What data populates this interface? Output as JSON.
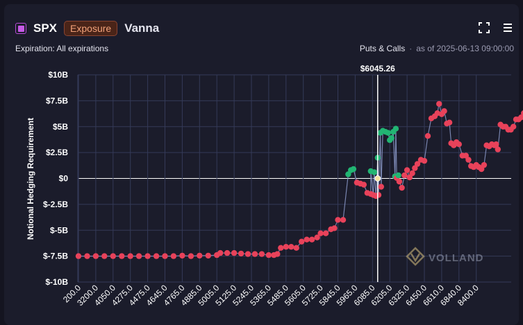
{
  "header": {
    "symbol": "SPX",
    "badge": "Exposure",
    "greek": "Vanna",
    "expiration": "Expiration: All expirations",
    "filter": "Puts & Calls",
    "dot": "·",
    "as_of": "as of 2025-06-13 09:00:00"
  },
  "icons": {
    "expand": "expand-icon",
    "menu": "hamburger-menu-icon",
    "logo": "volland-logo-icon"
  },
  "watermark": "VOLLAND",
  "colors": {
    "negative": "#e8425a",
    "positive": "#22b573",
    "line": "#8a98c8",
    "spot": "#ffffff",
    "spot_marker": "#f3e3a0"
  },
  "chart_data": {
    "type": "scatter",
    "ylabel": "Notional Hedging Requirement",
    "ylim": [
      -10,
      10
    ],
    "y_ticks": [
      "$-10B",
      "$-7.5B",
      "$-5B",
      "$-2.5B",
      "$0",
      "$2.5B",
      "$5B",
      "$7.5B",
      "$10B"
    ],
    "y_tick_values": [
      -10,
      -7.5,
      -5,
      -2.5,
      0,
      2.5,
      5,
      7.5,
      10
    ],
    "x_ticks": [
      "200.0",
      "3200.0",
      "4050.0",
      "4275.0",
      "4475.0",
      "4645.0",
      "4765.0",
      "4885.0",
      "5005.0",
      "5125.0",
      "5245.0",
      "5365.0",
      "5485.0",
      "5605.0",
      "5725.0",
      "5845.0",
      "5965.0",
      "6085.0",
      "6205.0",
      "6325.0",
      "6450.0",
      "6610.0",
      "6840.0",
      "8400.0"
    ],
    "spot": {
      "label": "$6045.26",
      "x_index": 17.3,
      "y": 0
    },
    "grid": true,
    "series": [
      {
        "color": "negative",
        "points": [
          [
            0,
            -7.5
          ],
          [
            0.5,
            -7.5
          ],
          [
            1,
            -7.5
          ],
          [
            1.5,
            -7.5
          ],
          [
            2,
            -7.5
          ],
          [
            2.5,
            -7.5
          ],
          [
            3,
            -7.5
          ],
          [
            3.5,
            -7.5
          ],
          [
            4,
            -7.5
          ],
          [
            4.5,
            -7.5
          ],
          [
            5,
            -7.5
          ],
          [
            5.5,
            -7.5
          ],
          [
            6,
            -7.45
          ],
          [
            6.5,
            -7.5
          ],
          [
            7,
            -7.45
          ],
          [
            7.5,
            -7.45
          ],
          [
            8,
            -7.4
          ],
          [
            8.2,
            -7.2
          ],
          [
            8.6,
            -7.2
          ],
          [
            9,
            -7.2
          ],
          [
            9.4,
            -7.25
          ],
          [
            9.8,
            -7.3
          ],
          [
            10.2,
            -7.3
          ],
          [
            10.6,
            -7.3
          ],
          [
            11,
            -7.4
          ],
          [
            11.3,
            -7.4
          ],
          [
            11.5,
            -7.3
          ],
          [
            11.7,
            -6.7
          ],
          [
            12,
            -6.6
          ],
          [
            12.3,
            -6.6
          ],
          [
            12.6,
            -6.7
          ],
          [
            12.9,
            -6.1
          ],
          [
            13.2,
            -5.9
          ],
          [
            13.5,
            -5.9
          ],
          [
            13.8,
            -5.7
          ],
          [
            14,
            -5.3
          ],
          [
            14.3,
            -5.3
          ],
          [
            14.6,
            -4.9
          ],
          [
            14.8,
            -4.8
          ],
          [
            15,
            -4.0
          ],
          [
            15.3,
            -4.0
          ],
          [
            16.1,
            -0.4
          ],
          [
            16.3,
            -0.5
          ],
          [
            16.5,
            -0.6
          ],
          [
            16.7,
            -1.4
          ],
          [
            16.9,
            -1.5
          ],
          [
            17.05,
            -1.6
          ],
          [
            17.2,
            -1.7
          ],
          [
            17.35,
            -1.6
          ],
          [
            17.5,
            -0.8
          ],
          [
            18.4,
            0.05
          ],
          [
            18.55,
            -0.3
          ],
          [
            18.7,
            -0.9
          ],
          [
            18.85,
            0.3
          ],
          [
            19.0,
            0.8
          ],
          [
            19.15,
            0.1
          ],
          [
            19.3,
            0.5
          ],
          [
            19.45,
            1.0
          ],
          [
            19.6,
            1.4
          ],
          [
            19.8,
            1.8
          ],
          [
            20.0,
            1.7
          ],
          [
            20.2,
            4.1
          ],
          [
            20.4,
            5.8
          ],
          [
            20.6,
            6.0
          ],
          [
            20.75,
            6.3
          ],
          [
            20.85,
            7.2
          ],
          [
            21.0,
            6.2
          ],
          [
            21.15,
            6.5
          ],
          [
            21.3,
            5.3
          ],
          [
            21.45,
            5.4
          ],
          [
            21.55,
            3.4
          ],
          [
            21.7,
            3.2
          ],
          [
            21.85,
            3.5
          ],
          [
            22.0,
            3.3
          ],
          [
            22.2,
            2.2
          ],
          [
            22.4,
            2.2
          ],
          [
            22.55,
            1.8
          ],
          [
            22.7,
            1.2
          ],
          [
            22.85,
            1.1
          ],
          [
            23.0,
            1.3
          ],
          [
            23.15,
            1.1
          ],
          [
            23.3,
            0.9
          ],
          [
            23.45,
            1.3
          ],
          [
            23.6,
            3.2
          ],
          [
            23.75,
            3.1
          ],
          [
            23.9,
            3.3
          ],
          [
            24.05,
            3.2
          ],
          [
            24.15,
            3.3
          ],
          [
            24.25,
            2.8
          ],
          [
            24.4,
            5.2
          ],
          [
            24.55,
            5.0
          ],
          [
            24.7,
            5.0
          ],
          [
            24.85,
            4.7
          ],
          [
            25.0,
            4.7
          ],
          [
            25.15,
            5.0
          ],
          [
            25.3,
            5.7
          ],
          [
            25.45,
            5.7
          ],
          [
            25.6,
            5.9
          ],
          [
            25.75,
            6.3
          ],
          [
            25.9,
            7.2
          ],
          [
            26.05,
            7.3
          ],
          [
            26.2,
            7.4
          ],
          [
            26.4,
            7.45
          ],
          [
            26.6,
            7.5
          ],
          [
            26.8,
            7.5
          ],
          [
            27.0,
            7.5
          ],
          [
            27.2,
            7.5
          ],
          [
            27.4,
            7.5
          ]
        ]
      },
      {
        "color": "positive",
        "points": [
          [
            15.6,
            0.4
          ],
          [
            15.75,
            0.8
          ],
          [
            15.9,
            0.9
          ],
          [
            16.9,
            0.7
          ],
          [
            17.1,
            0.6
          ],
          [
            17.3,
            2.0
          ],
          [
            17.45,
            4.4
          ],
          [
            17.6,
            4.6
          ],
          [
            17.75,
            4.5
          ],
          [
            17.9,
            4.4
          ],
          [
            18.0,
            3.7
          ],
          [
            18.1,
            3.9
          ],
          [
            18.2,
            4.5
          ],
          [
            18.35,
            4.8
          ],
          [
            18.3,
            0.2
          ],
          [
            18.5,
            0.3
          ]
        ]
      }
    ]
  }
}
